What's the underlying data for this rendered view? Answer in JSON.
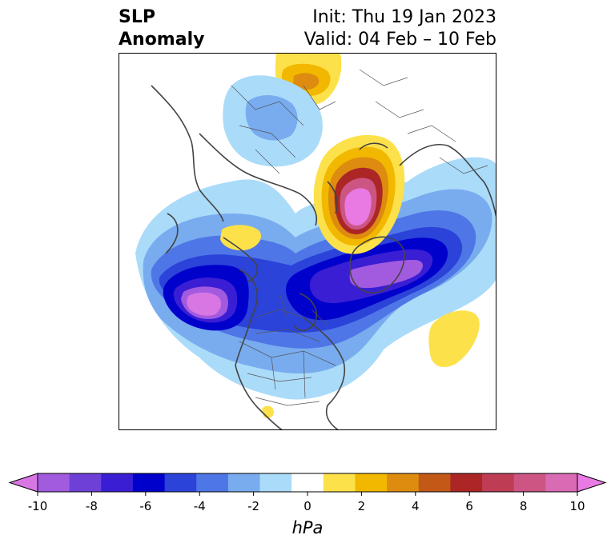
{
  "title": {
    "left_line1": "SLP",
    "left_line2": "Anomaly",
    "right_line1": "Init: Thu 19 Jan 2023",
    "right_line2": "Valid: 04 Feb – 10 Feb"
  },
  "map": {
    "projection": "north-polar stereographic",
    "field": "sea level pressure anomaly"
  },
  "colorbar": {
    "unit_label": "hPa",
    "tick_labels": [
      "-10",
      "-8",
      "-6",
      "-4",
      "-2",
      "0",
      "2",
      "4",
      "6",
      "8",
      "10"
    ],
    "colors": [
      "#d877e3",
      "#a25bdf",
      "#6e40d8",
      "#3a1ed4",
      "#0101cc",
      "#2b43d9",
      "#4f76e6",
      "#78acef",
      "#aadbf9",
      "#ffffff",
      "#fde14a",
      "#f2b800",
      "#dd8c10",
      "#c35917",
      "#ac2626",
      "#bf3c55",
      "#cc5583",
      "#d96ab4",
      "#e97ae3"
    ],
    "extend": "both"
  }
}
